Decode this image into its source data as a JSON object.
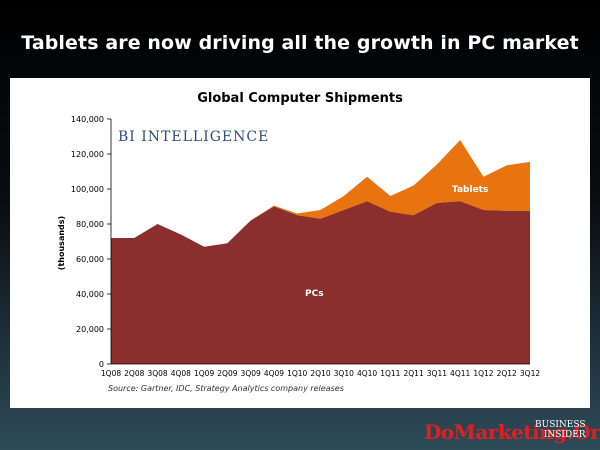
{
  "slide": {
    "title": "Tablets are now driving all the growth in PC market",
    "watermark": "DoMarketing.Org",
    "logo_line1": "BUSINESS",
    "logo_line2": "INSIDER"
  },
  "chart_data": {
    "type": "area",
    "title": "Global Computer Shipments",
    "ylabel": "(thousands)",
    "xlabel": "",
    "brand": "BI INTELLIGENCE",
    "source": "Source: Gartner, IDC, Strategy Analytics company releases",
    "categories": [
      "1Q08",
      "2Q08",
      "3Q08",
      "4Q08",
      "1Q09",
      "2Q09",
      "3Q09",
      "4Q09",
      "1Q10",
      "2Q10",
      "3Q10",
      "4Q10",
      "1Q11",
      "2Q11",
      "3Q11",
      "4Q11",
      "1Q12",
      "2Q12",
      "3Q12"
    ],
    "stacked": true,
    "series": [
      {
        "name": "PCs",
        "color": "#8B2E2E",
        "values": [
          72000,
          72000,
          80000,
          74000,
          67000,
          69000,
          82000,
          90000,
          85000,
          83000,
          88000,
          93000,
          87000,
          85000,
          92000,
          93000,
          88000,
          87500,
          87500
        ]
      },
      {
        "name": "Tablets",
        "color": "#E8740F",
        "values": [
          0,
          0,
          0,
          0,
          0,
          0,
          0,
          500,
          1000,
          5000,
          8000,
          14000,
          9000,
          17000,
          22000,
          35000,
          19000,
          26000,
          28000
        ]
      }
    ],
    "ylim": [
      0,
      140000
    ],
    "yticks": [
      "0",
      "20,000",
      "40,000",
      "60,000",
      "80,000",
      "100,000",
      "120,000",
      "140,000"
    ],
    "ytick_values": [
      0,
      20000,
      40000,
      60000,
      80000,
      100000,
      120000,
      140000
    ],
    "grid": false,
    "legend": "labels on areas"
  }
}
